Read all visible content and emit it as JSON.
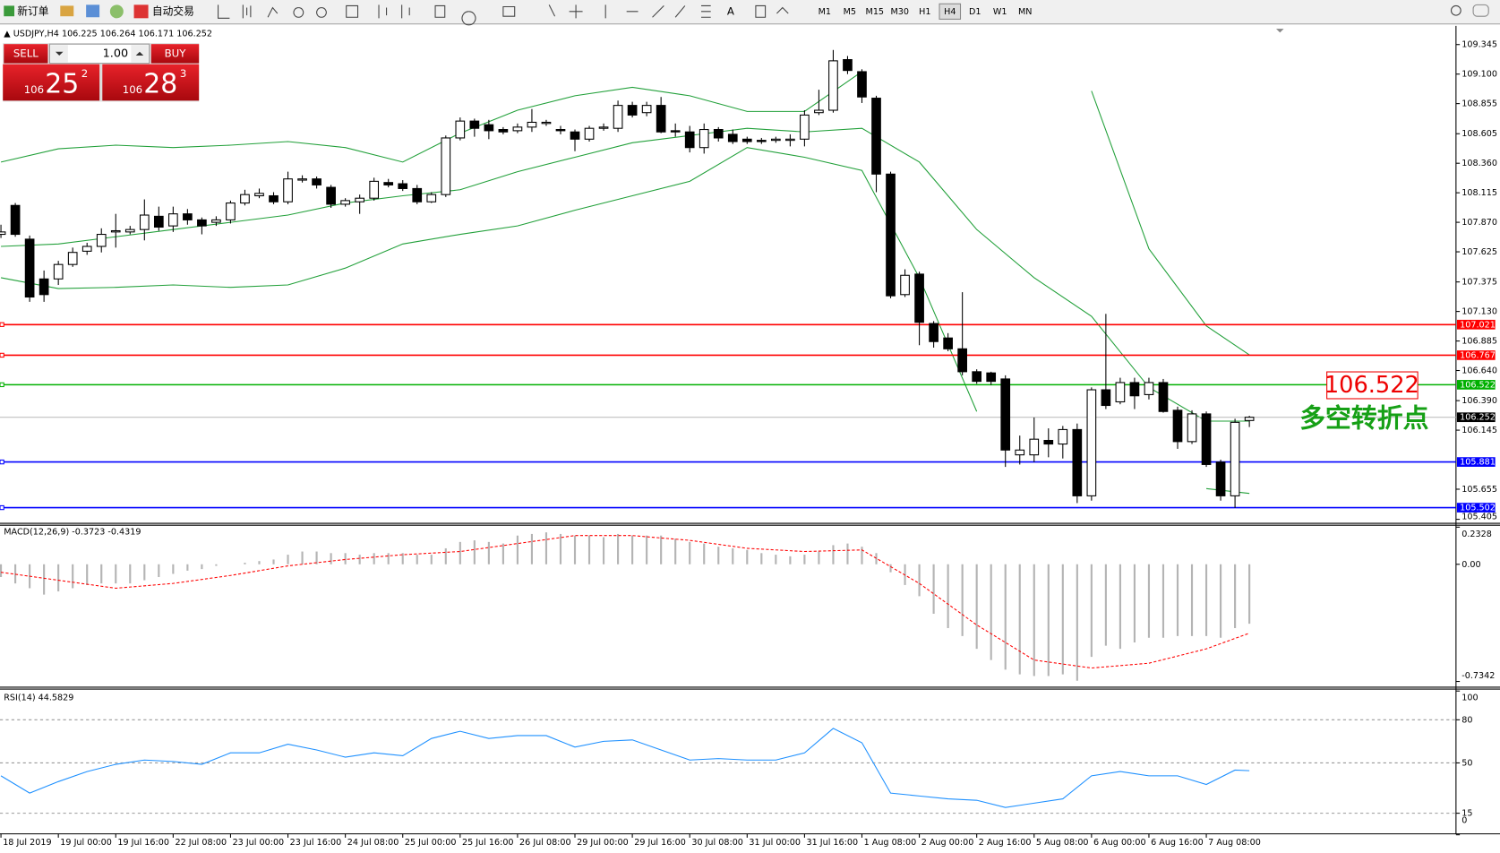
{
  "toolbar": {
    "new_order": "新订单",
    "auto_trading": "自动交易",
    "timeframes": [
      "M1",
      "M5",
      "M15",
      "M30",
      "H1",
      "H4",
      "D1",
      "W1",
      "MN"
    ],
    "active": 5
  },
  "trade_panel": {
    "sell": "SELL",
    "buy": "BUY",
    "lots": "1.00",
    "bid": {
      "big": "106",
      "main": "25",
      "small": "2"
    },
    "ask": {
      "big": "106",
      "main": "28",
      "small": "3"
    }
  },
  "chart_data": [
    {
      "type": "candlestick",
      "symbol": "USDJPY,H4",
      "up_color": "#ffffff",
      "down_color": "#000000",
      "ylim": [
        105.38,
        109.5
      ],
      "yticks": [
        109.345,
        {
          "value": 109.1,
          "label": "109.100"
        },
        108.855,
        108.605,
        {
          "value": 108.36,
          "label": "108.360"
        },
        108.115,
        {
          "value": 107.87,
          "label": "107.870"
        },
        107.625,
        107.375,
        {
          "value": 107.13,
          "label": "107.130"
        },
        106.885,
        {
          "value": 106.64,
          "label": "106.640"
        },
        {
          "value": 106.39,
          "label": "106.390"
        },
        106.145,
        105.655,
        105.405
      ],
      "time_labels": [
        "18 Jul 2019",
        "19 Jul 00:00",
        "19 Jul 16:00",
        "22 Jul 08:00",
        "23 Jul 00:00",
        "23 Jul 16:00",
        "24 Jul 08:00",
        "25 Jul 00:00",
        "25 Jul 16:00",
        "26 Jul 08:00",
        "29 Jul 00:00",
        "29 Jul 16:00",
        "30 Jul 08:00",
        "31 Jul 00:00",
        "31 Jul 16:00",
        "1 Aug 08:00",
        "2 Aug 00:00",
        "2 Aug 16:00",
        "5 Aug 08:00",
        "6 Aug 00:00",
        "6 Aug 16:00",
        "7 Aug 08:00"
      ],
      "ohlc": [
        [
          107.77,
          107.85,
          107.74,
          107.79
        ],
        [
          108.01,
          108.03,
          107.75,
          107.77
        ],
        [
          107.73,
          107.76,
          107.21,
          107.25
        ],
        [
          107.4,
          107.47,
          107.21,
          107.27
        ],
        [
          107.4,
          107.55,
          107.35,
          107.52
        ],
        [
          107.52,
          107.66,
          107.5,
          107.62
        ],
        [
          107.63,
          107.7,
          107.6,
          107.67
        ],
        [
          107.67,
          107.82,
          107.62,
          107.77
        ],
        [
          107.79,
          107.94,
          107.66,
          107.8
        ],
        [
          107.79,
          107.84,
          107.77,
          107.81
        ],
        [
          107.81,
          108.06,
          107.72,
          107.93
        ],
        [
          107.92,
          108.0,
          107.8,
          107.83
        ],
        [
          107.84,
          108.0,
          107.79,
          107.94
        ],
        [
          107.94,
          107.98,
          107.85,
          107.89
        ],
        [
          107.89,
          107.91,
          107.77,
          107.84
        ],
        [
          107.87,
          107.92,
          107.84,
          107.89
        ],
        [
          107.89,
          108.05,
          107.86,
          108.03
        ],
        [
          108.03,
          108.14,
          108.01,
          108.1
        ],
        [
          108.09,
          108.15,
          108.07,
          108.11
        ],
        [
          108.09,
          108.12,
          108.02,
          108.04
        ],
        [
          108.04,
          108.29,
          108.02,
          108.23
        ],
        [
          108.22,
          108.26,
          108.2,
          108.23
        ],
        [
          108.23,
          108.25,
          108.15,
          108.18
        ],
        [
          108.16,
          108.18,
          107.99,
          108.02
        ],
        [
          108.02,
          108.07,
          108.0,
          108.05
        ],
        [
          108.04,
          108.1,
          107.94,
          108.07
        ],
        [
          108.07,
          108.24,
          108.05,
          108.21
        ],
        [
          108.2,
          108.23,
          108.16,
          108.18
        ],
        [
          108.19,
          108.22,
          108.13,
          108.15
        ],
        [
          108.15,
          108.18,
          108.02,
          108.04
        ],
        [
          108.04,
          108.12,
          108.03,
          108.1
        ],
        [
          108.1,
          108.59,
          108.08,
          108.57
        ],
        [
          108.57,
          108.74,
          108.55,
          108.71
        ],
        [
          108.71,
          108.73,
          108.58,
          108.65
        ],
        [
          108.68,
          108.72,
          108.56,
          108.63
        ],
        [
          108.64,
          108.66,
          108.6,
          108.62
        ],
        [
          108.63,
          108.69,
          108.61,
          108.66
        ],
        [
          108.66,
          108.81,
          108.62,
          108.7
        ],
        [
          108.69,
          108.72,
          108.67,
          108.7
        ],
        [
          108.64,
          108.67,
          108.6,
          108.63
        ],
        [
          108.62,
          108.64,
          108.46,
          108.56
        ],
        [
          108.56,
          108.67,
          108.54,
          108.65
        ],
        [
          108.65,
          108.69,
          108.63,
          108.66
        ],
        [
          108.65,
          108.88,
          108.62,
          108.84
        ],
        [
          108.84,
          108.87,
          108.74,
          108.76
        ],
        [
          108.78,
          108.87,
          108.75,
          108.84
        ],
        [
          108.84,
          108.91,
          108.61,
          108.62
        ],
        [
          108.63,
          108.69,
          108.58,
          108.62
        ],
        [
          108.62,
          108.67,
          108.45,
          108.49
        ],
        [
          108.49,
          108.69,
          108.44,
          108.64
        ],
        [
          108.64,
          108.66,
          108.54,
          108.57
        ],
        [
          108.6,
          108.64,
          108.52,
          108.54
        ],
        [
          108.56,
          108.58,
          108.52,
          108.54
        ],
        [
          108.55,
          108.57,
          108.52,
          108.54
        ],
        [
          108.55,
          108.58,
          108.53,
          108.56
        ],
        [
          108.55,
          108.6,
          108.5,
          108.56
        ],
        [
          108.56,
          108.8,
          108.5,
          108.76
        ],
        [
          108.78,
          108.97,
          108.76,
          108.8
        ],
        [
          108.8,
          109.3,
          108.78,
          109.21
        ],
        [
          109.22,
          109.25,
          109.1,
          109.13
        ],
        [
          109.12,
          109.14,
          108.86,
          108.91
        ],
        [
          108.9,
          108.92,
          108.12,
          108.27
        ],
        [
          108.27,
          108.29,
          107.24,
          107.26
        ],
        [
          107.27,
          107.48,
          107.25,
          107.43
        ],
        [
          107.44,
          107.46,
          106.85,
          107.04
        ],
        [
          107.03,
          107.05,
          106.83,
          106.88
        ],
        [
          106.91,
          106.95,
          106.8,
          106.82
        ],
        [
          106.82,
          107.29,
          106.6,
          106.63
        ],
        [
          106.63,
          106.65,
          106.53,
          106.55
        ],
        [
          106.62,
          106.63,
          106.52,
          106.55
        ],
        [
          106.57,
          106.6,
          105.84,
          105.98
        ],
        [
          105.94,
          106.1,
          105.86,
          105.98
        ],
        [
          105.94,
          106.25,
          105.88,
          106.07
        ],
        [
          106.06,
          106.16,
          105.92,
          106.03
        ],
        [
          106.03,
          106.18,
          105.91,
          106.15
        ],
        [
          106.15,
          106.2,
          105.54,
          105.6
        ],
        [
          105.6,
          106.5,
          105.56,
          106.48
        ],
        [
          106.48,
          107.11,
          106.32,
          106.35
        ],
        [
          106.38,
          106.58,
          106.36,
          106.54
        ],
        [
          106.54,
          106.58,
          106.32,
          106.43
        ],
        [
          106.44,
          106.58,
          106.4,
          106.54
        ],
        [
          106.54,
          106.57,
          106.29,
          106.3
        ],
        [
          106.31,
          106.34,
          105.99,
          106.05
        ],
        [
          106.05,
          106.31,
          106.03,
          106.28
        ],
        [
          106.28,
          106.3,
          105.84,
          105.86
        ],
        [
          105.88,
          105.9,
          105.56,
          105.6
        ],
        [
          105.6,
          106.24,
          105.5,
          106.21
        ],
        [
          106.225,
          106.264,
          106.171,
          106.252
        ]
      ],
      "bands": [
        {
          "color": "#22a03a",
          "x": [
            0,
            4,
            8,
            12,
            16,
            20,
            24,
            28,
            32,
            36,
            40,
            44,
            48,
            52,
            56,
            60,
            64,
            68,
            72,
            76,
            80,
            84,
            87
          ],
          "values": [
            108.37,
            108.48,
            108.51,
            108.49,
            108.51,
            108.54,
            108.49,
            108.37,
            108.61,
            108.8,
            108.92,
            108.99,
            108.92,
            108.79,
            108.79,
            109.12,
            null,
            null,
            null,
            108.96,
            107.65,
            107.01,
            106.77
          ]
        },
        {
          "color": "#22a03a",
          "x": [
            0,
            4,
            8,
            12,
            16,
            20,
            24,
            28,
            32,
            36,
            40,
            44,
            48,
            52,
            56,
            60,
            64,
            68,
            72,
            76,
            80,
            84,
            87
          ],
          "values": [
            107.67,
            107.69,
            107.75,
            107.81,
            107.87,
            107.93,
            108.03,
            108.09,
            108.14,
            108.29,
            108.41,
            108.53,
            108.59,
            108.65,
            108.62,
            108.65,
            108.37,
            107.81,
            107.41,
            107.09,
            106.5,
            106.22,
            106.22
          ]
        },
        {
          "color": "#22a03a",
          "x": [
            0,
            4,
            8,
            12,
            16,
            20,
            24,
            28,
            32,
            36,
            40,
            44,
            48,
            52,
            56,
            60,
            64,
            68,
            72,
            76,
            80,
            84,
            87
          ],
          "values": [
            107.41,
            107.32,
            107.33,
            107.35,
            107.33,
            107.35,
            107.49,
            107.69,
            107.77,
            107.84,
            107.97,
            108.09,
            108.21,
            108.49,
            108.41,
            108.3,
            107.41,
            106.3,
            null,
            null,
            null,
            105.66,
            105.62
          ]
        }
      ],
      "levels": [
        {
          "value": 107.021,
          "color": "#ff0000"
        },
        {
          "value": 106.767,
          "color": "#ff0000"
        },
        {
          "value": 106.522,
          "color": "#00b000"
        },
        {
          "value": 105.881,
          "color": "#0000ff"
        },
        {
          "value": 105.502,
          "color": "#0000ff"
        }
      ],
      "annotation": "106.522",
      "note": "多空转折点"
    },
    {
      "type": "macd",
      "name": "MACD(12,26,9)",
      "ylim": [
        -0.7342,
        0.2328
      ],
      "yticks": [
        0.2328,
        {
          "value": 0,
          "label": "0.00"
        },
        -0.7342
      ],
      "histogram": {
        "color": "#b4b4b4",
        "values": [
          -0.08,
          -0.12,
          -0.15,
          -0.19,
          -0.17,
          -0.15,
          -0.13,
          -0.12,
          -0.12,
          -0.12,
          -0.1,
          -0.08,
          -0.06,
          -0.04,
          -0.03,
          -0.01,
          0.0,
          0.01,
          0.02,
          0.03,
          0.06,
          0.08,
          0.08,
          0.07,
          0.07,
          0.06,
          0.07,
          0.07,
          0.07,
          0.06,
          0.06,
          0.1,
          0.14,
          0.15,
          0.14,
          0.13,
          0.18,
          0.19,
          0.2,
          0.19,
          0.18,
          0.18,
          0.17,
          0.19,
          0.18,
          0.18,
          0.18,
          0.16,
          0.14,
          0.13,
          0.11,
          0.1,
          0.09,
          0.07,
          0.06,
          0.05,
          0.06,
          0.08,
          0.12,
          0.13,
          0.11,
          0.07,
          -0.05,
          -0.13,
          -0.2,
          -0.31,
          -0.4,
          -0.45,
          -0.53,
          -0.6,
          -0.66,
          -0.69,
          -0.7,
          -0.7,
          -0.69,
          -0.73,
          -0.58,
          -0.51,
          -0.53,
          -0.49,
          -0.46,
          -0.46,
          -0.45,
          -0.45,
          -0.45,
          -0.46,
          -0.4,
          -0.3723
        ]
      },
      "signal": {
        "color": "#ff0000",
        "x": [
          0,
          4,
          8,
          12,
          16,
          20,
          24,
          28,
          32,
          36,
          40,
          44,
          48,
          52,
          56,
          60,
          64,
          68,
          72,
          76,
          80,
          84,
          87
        ],
        "values": [
          -0.05,
          -0.1,
          -0.15,
          -0.12,
          -0.07,
          -0.01,
          0.03,
          0.06,
          0.08,
          0.13,
          0.18,
          0.18,
          0.15,
          0.1,
          0.08,
          0.09,
          -0.12,
          -0.38,
          -0.6,
          -0.65,
          -0.62,
          -0.53,
          -0.4319
        ]
      }
    },
    {
      "type": "line",
      "name": "RSI(14)",
      "ylim": [
        0,
        100
      ],
      "yticks": [
        100,
        80,
        50,
        15,
        0
      ],
      "color": "#1e90ff",
      "x": [
        0,
        2,
        4,
        6,
        8,
        10,
        12,
        14,
        16,
        18,
        20,
        22,
        24,
        26,
        28,
        30,
        32,
        34,
        36,
        38,
        40,
        42,
        44,
        46,
        48,
        50,
        52,
        54,
        56,
        58,
        60,
        62,
        64,
        66,
        68,
        70,
        72,
        74,
        76,
        78,
        80,
        82,
        84,
        86,
        87
      ],
      "values": [
        41,
        29,
        37,
        44,
        49,
        52,
        51,
        49,
        57,
        57,
        63,
        59,
        54,
        57,
        55,
        67,
        72,
        67,
        69,
        69,
        61,
        65,
        66,
        59,
        52,
        53,
        52,
        52,
        57,
        74,
        64,
        29,
        27,
        25,
        24,
        19,
        22,
        25,
        41,
        44,
        41,
        41,
        35,
        45,
        44.5829
      ]
    }
  ]
}
